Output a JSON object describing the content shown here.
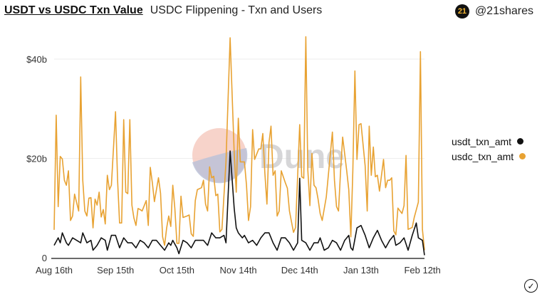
{
  "header": {
    "tab_active": "USDT vs USDC Txn Value",
    "tab_other": "USDC Flippening - Txn and Users"
  },
  "brand": {
    "logo_text": "21",
    "handle": "@21shares"
  },
  "watermark": "Dune",
  "chart_data": {
    "type": "line",
    "title": "USDT vs USDC Txn Value",
    "xlabel": "",
    "ylabel": "",
    "x_unit": "days since Aug 16th",
    "xlim": [
      0,
      181
    ],
    "ylim": [
      0,
      40
    ],
    "y_ticks": [
      {
        "value": 0,
        "label": "0"
      },
      {
        "value": 20,
        "label": "$20b"
      },
      {
        "value": 40,
        "label": "$40b"
      }
    ],
    "x_ticks": [
      {
        "value": 0,
        "label": "Aug 16th"
      },
      {
        "value": 30,
        "label": "Sep 15th"
      },
      {
        "value": 60,
        "label": "Oct 15th"
      },
      {
        "value": 90,
        "label": "Nov 14th"
      },
      {
        "value": 120,
        "label": "Dec 14th"
      },
      {
        "value": 150,
        "label": "Jan 13th"
      },
      {
        "value": 180,
        "label": "Feb 12th"
      }
    ],
    "grid": true,
    "legend_position": "right",
    "series": [
      {
        "name": "usdt_txn_amt",
        "color": "#111111",
        "points": [
          [
            0,
            2.5
          ],
          [
            2,
            4
          ],
          [
            3,
            3
          ],
          [
            4,
            5
          ],
          [
            6,
            3
          ],
          [
            7,
            2.5
          ],
          [
            9,
            4
          ],
          [
            11,
            3.5
          ],
          [
            13,
            3
          ],
          [
            14,
            5
          ],
          [
            16,
            3
          ],
          [
            18,
            3.5
          ],
          [
            19,
            1.5
          ],
          [
            21,
            2.5
          ],
          [
            23,
            4
          ],
          [
            25,
            3.5
          ],
          [
            26,
            1.5
          ],
          [
            28,
            4.5
          ],
          [
            30,
            4.5
          ],
          [
            32,
            2
          ],
          [
            34,
            4
          ],
          [
            36,
            3
          ],
          [
            38,
            3
          ],
          [
            40,
            2
          ],
          [
            42,
            3.5
          ],
          [
            44,
            3
          ],
          [
            46,
            2
          ],
          [
            48,
            3.5
          ],
          [
            50,
            3.5
          ],
          [
            52,
            2.5
          ],
          [
            54,
            1.5
          ],
          [
            56,
            3
          ],
          [
            57,
            2.5
          ],
          [
            58,
            3.5
          ],
          [
            60,
            2
          ],
          [
            61,
            0.8
          ],
          [
            63,
            3.5
          ],
          [
            65,
            3
          ],
          [
            67,
            2
          ],
          [
            69,
            3.5
          ],
          [
            71,
            3.5
          ],
          [
            73,
            3.5
          ],
          [
            75,
            2.5
          ],
          [
            77,
            5
          ],
          [
            79,
            4
          ],
          [
            81,
            4
          ],
          [
            83,
            4.5
          ],
          [
            84,
            3
          ],
          [
            86,
            21.5
          ],
          [
            88,
            10
          ],
          [
            89,
            6
          ],
          [
            90,
            5
          ],
          [
            92,
            4
          ],
          [
            93,
            4.5
          ],
          [
            95,
            3
          ],
          [
            97,
            3.5
          ],
          [
            99,
            2.5
          ],
          [
            101,
            4
          ],
          [
            103,
            5
          ],
          [
            105,
            5
          ],
          [
            107,
            3
          ],
          [
            109,
            1.5
          ],
          [
            111,
            4
          ],
          [
            113,
            4
          ],
          [
            115,
            3
          ],
          [
            117,
            1.5
          ],
          [
            119,
            3
          ],
          [
            120,
            16
          ],
          [
            121,
            3.5
          ],
          [
            123,
            3
          ],
          [
            125,
            1.5
          ],
          [
            127,
            3
          ],
          [
            129,
            3
          ],
          [
            130,
            4
          ],
          [
            132,
            1.5
          ],
          [
            134,
            2
          ],
          [
            136,
            3.5
          ],
          [
            138,
            3
          ],
          [
            140,
            1.5
          ],
          [
            142,
            3.5
          ],
          [
            144,
            4.5
          ],
          [
            145,
            2
          ],
          [
            146,
            1.5
          ],
          [
            148,
            6
          ],
          [
            150,
            6.5
          ],
          [
            152,
            4.5
          ],
          [
            154,
            2
          ],
          [
            156,
            4
          ],
          [
            158,
            5.5
          ],
          [
            160,
            3.5
          ],
          [
            162,
            2
          ],
          [
            164,
            3.5
          ],
          [
            166,
            4.5
          ],
          [
            167,
            2.5
          ],
          [
            169,
            3
          ],
          [
            171,
            4
          ],
          [
            173,
            1.5
          ],
          [
            175,
            4.5
          ],
          [
            177,
            7
          ],
          [
            178,
            4
          ],
          [
            180,
            3.5
          ],
          [
            181,
            0.5
          ]
        ]
      },
      {
        "name": "usdc_txn_amt",
        "color": "#E8A232",
        "points": [
          [
            0,
            5.6
          ],
          [
            1,
            28.7
          ],
          [
            2,
            10.3
          ],
          [
            3,
            20.4
          ],
          [
            4,
            19.9
          ],
          [
            5,
            15.6
          ],
          [
            6,
            14.6
          ],
          [
            7,
            17.5
          ],
          [
            8,
            7.5
          ],
          [
            9,
            8.4
          ],
          [
            10,
            12.8
          ],
          [
            12,
            9.4
          ],
          [
            13,
            36.4
          ],
          [
            14,
            15.6
          ],
          [
            15,
            9.4
          ],
          [
            16,
            8.4
          ],
          [
            17,
            12
          ],
          [
            18,
            12.1
          ],
          [
            19,
            6
          ],
          [
            20,
            11.8
          ],
          [
            21,
            10.6
          ],
          [
            22,
            13.2
          ],
          [
            23,
            8.2
          ],
          [
            24,
            9.7
          ],
          [
            25,
            6.8
          ],
          [
            26,
            16.6
          ],
          [
            27,
            13.7
          ],
          [
            28,
            14.6
          ],
          [
            30,
            29.4
          ],
          [
            31,
            15.6
          ],
          [
            32,
            7
          ],
          [
            33,
            7
          ],
          [
            34,
            27.8
          ],
          [
            35,
            13.2
          ],
          [
            36,
            12.9
          ],
          [
            37,
            27.8
          ],
          [
            38,
            10.6
          ],
          [
            39,
            8
          ],
          [
            40,
            6.5
          ],
          [
            41,
            9.9
          ],
          [
            42,
            9.7
          ],
          [
            43,
            9.4
          ],
          [
            45,
            11.5
          ],
          [
            46,
            6.5
          ],
          [
            47,
            18.2
          ],
          [
            48,
            15.1
          ],
          [
            49,
            11.3
          ],
          [
            51,
            16.1
          ],
          [
            52,
            13
          ],
          [
            53,
            4.2
          ],
          [
            54,
            2.5
          ],
          [
            55,
            6
          ],
          [
            56,
            8.4
          ],
          [
            57,
            6.3
          ],
          [
            58,
            14.6
          ],
          [
            59,
            9.9
          ],
          [
            60,
            2.9
          ],
          [
            61,
            2.9
          ],
          [
            62,
            12.4
          ],
          [
            63,
            8.1
          ],
          [
            65,
            8.4
          ],
          [
            66,
            8.6
          ],
          [
            67,
            4.8
          ],
          [
            68,
            4.3
          ],
          [
            69,
            11.5
          ],
          [
            70,
            13.7
          ],
          [
            72,
            14.1
          ],
          [
            73,
            15.6
          ],
          [
            74,
            10.8
          ],
          [
            75,
            9.4
          ],
          [
            76,
            18.3
          ],
          [
            77,
            16.1
          ],
          [
            78,
            16.4
          ],
          [
            79,
            12.5
          ],
          [
            80,
            12.8
          ],
          [
            81,
            5.2
          ],
          [
            82,
            5.7
          ],
          [
            84,
            19.3
          ],
          [
            86,
            44.3
          ],
          [
            88,
            21.2
          ],
          [
            89,
            13.2
          ],
          [
            90,
            28.1
          ],
          [
            91,
            19.3
          ],
          [
            93,
            19.3
          ],
          [
            94,
            14.6
          ],
          [
            95,
            7.5
          ],
          [
            96,
            10.3
          ],
          [
            97,
            25.8
          ],
          [
            98,
            19.8
          ],
          [
            100,
            21.9
          ],
          [
            101,
            21.9
          ],
          [
            102,
            25
          ],
          [
            103,
            17
          ],
          [
            104,
            10.8
          ],
          [
            105,
            23.2
          ],
          [
            106,
            26.5
          ],
          [
            107,
            16.6
          ],
          [
            108,
            17.5
          ],
          [
            109,
            8.4
          ],
          [
            110,
            9.4
          ],
          [
            111,
            17.5
          ],
          [
            113,
            15.1
          ],
          [
            114,
            14
          ],
          [
            115,
            9.4
          ],
          [
            117,
            5.1
          ],
          [
            118,
            6.1
          ],
          [
            120,
            26.8
          ],
          [
            121,
            16.3
          ],
          [
            122,
            16
          ],
          [
            123,
            44.5
          ],
          [
            124,
            17.7
          ],
          [
            125,
            10.5
          ],
          [
            126,
            21
          ],
          [
            127,
            14.6
          ],
          [
            128,
            14.1
          ],
          [
            129,
            11.8
          ],
          [
            130,
            8.9
          ],
          [
            131,
            7.5
          ],
          [
            133,
            12.2
          ],
          [
            134,
            16.6
          ],
          [
            136,
            25.3
          ],
          [
            137,
            15.6
          ],
          [
            138,
            10.3
          ],
          [
            139,
            9.4
          ],
          [
            140,
            17.5
          ],
          [
            141,
            24.3
          ],
          [
            143,
            17.5
          ],
          [
            144,
            13.7
          ],
          [
            145,
            4.2
          ],
          [
            146,
            17.5
          ],
          [
            147,
            37.6
          ],
          [
            148,
            19.8
          ],
          [
            149,
            26.8
          ],
          [
            150,
            27
          ],
          [
            152,
            18.5
          ],
          [
            153,
            9.4
          ],
          [
            154,
            26.5
          ],
          [
            155,
            16.6
          ],
          [
            156,
            22.3
          ],
          [
            157,
            16.3
          ],
          [
            158,
            16.6
          ],
          [
            159,
            13.4
          ],
          [
            161,
            19.8
          ],
          [
            162,
            14.1
          ],
          [
            163,
            15.6
          ],
          [
            164,
            15.6
          ],
          [
            165,
            16.1
          ],
          [
            166,
            5.4
          ],
          [
            167,
            4.6
          ],
          [
            168,
            10
          ],
          [
            170,
            8.9
          ],
          [
            171,
            10.5
          ],
          [
            172,
            20.6
          ],
          [
            173,
            5.7
          ],
          [
            175,
            6.1
          ],
          [
            176,
            8.1
          ],
          [
            178,
            11.2
          ],
          [
            179,
            41.5
          ],
          [
            180,
            5.7
          ],
          [
            181,
            1.5
          ]
        ]
      }
    ]
  }
}
